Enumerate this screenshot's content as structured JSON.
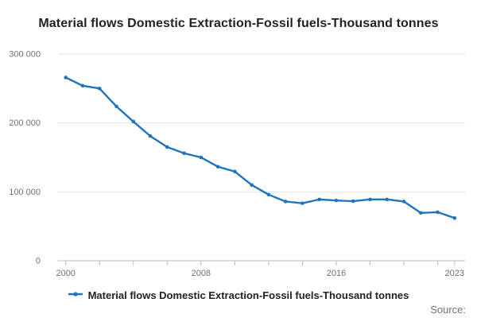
{
  "header": {
    "title": "Material flows Domestic Extraction-Fossil fuels-Thousand tonnes"
  },
  "legend": {
    "label": "Material flows Domestic Extraction-Fossil fuels-Thousand tonnes",
    "marker": "line-with-dot-icon"
  },
  "footer": {
    "source_label": "Source:"
  },
  "colors": {
    "line": "#2074bc",
    "grid": "#e3e3e3",
    "axis": "#b3bac9",
    "tick_label": "#707070",
    "title_text": "#222222"
  },
  "chart_data": {
    "type": "line",
    "title": "Material flows Domestic Extraction-Fossil fuels-Thousand tonnes",
    "xlabel": "",
    "ylabel": "",
    "x": [
      2000,
      2001,
      2002,
      2003,
      2004,
      2005,
      2006,
      2007,
      2008,
      2009,
      2010,
      2011,
      2012,
      2013,
      2014,
      2015,
      2016,
      2017,
      2018,
      2019,
      2020,
      2021,
      2022,
      2023
    ],
    "series": [
      {
        "name": "Material flows Domestic Extraction-Fossil fuels-Thousand tonnes",
        "values": [
          266000,
          254000,
          250000,
          224000,
          202000,
          181000,
          165000,
          156000,
          150000,
          136500,
          129500,
          110000,
          96000,
          86000,
          83500,
          89000,
          87500,
          86500,
          89000,
          89000,
          86000,
          69500,
          70500,
          62000
        ]
      }
    ],
    "ylim": [
      0,
      300000
    ],
    "yticks": [
      0,
      100000,
      200000,
      300000
    ],
    "ytick_labels": [
      "0",
      "100 000",
      "200 000",
      "300 000"
    ],
    "xtick_years": [
      2000,
      2008,
      2016,
      2023
    ],
    "xtick_labels": [
      "2000",
      "2008",
      "2016",
      "2023"
    ],
    "x_minor_tick_interval_years": 2,
    "grid": "horizontal",
    "legend_position": "bottom",
    "marker": "dot"
  }
}
